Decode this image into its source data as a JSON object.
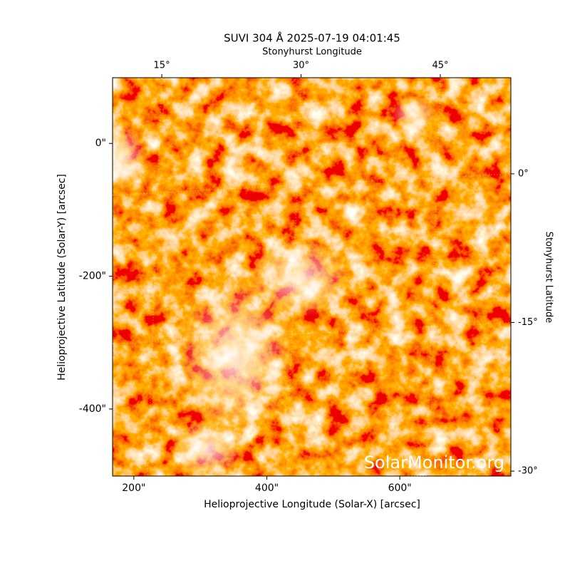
{
  "chart_data": {
    "type": "image",
    "title": "SUVI 304 Å 2025-07-19 04:01:45",
    "xlabel": "Helioprojective Longitude (Solar-X) [arcsec]",
    "ylabel": "Helioprojective Latitude (Solar-Y) [arcsec]",
    "xlim": [
      168,
      767
    ],
    "ylim": [
      -501,
      99
    ],
    "xticks": [
      {
        "value": 200,
        "label": "200\""
      },
      {
        "value": 400,
        "label": "400\""
      },
      {
        "value": 600,
        "label": "600\""
      }
    ],
    "yticks": [
      {
        "value": 0,
        "label": "0\""
      },
      {
        "value": -200,
        "label": "-200\""
      },
      {
        "value": -400,
        "label": "-400\""
      }
    ],
    "top_axis": {
      "label": "Stonyhurst Longitude",
      "lim": [
        9.7,
        52.6
      ],
      "ticks": [
        {
          "value": 15,
          "label": "15°"
        },
        {
          "value": 30,
          "label": "30°"
        },
        {
          "value": 45,
          "label": "45°"
        }
      ]
    },
    "right_axis": {
      "label": "Stonyhurst Latitude",
      "lim": [
        9.7,
        -30.5
      ],
      "ticks": [
        {
          "value": 0,
          "label": "0°"
        },
        {
          "value": -15,
          "label": "-15°"
        },
        {
          "value": -30,
          "label": "-30°"
        }
      ]
    },
    "watermark": "SolarMonitor.org"
  }
}
